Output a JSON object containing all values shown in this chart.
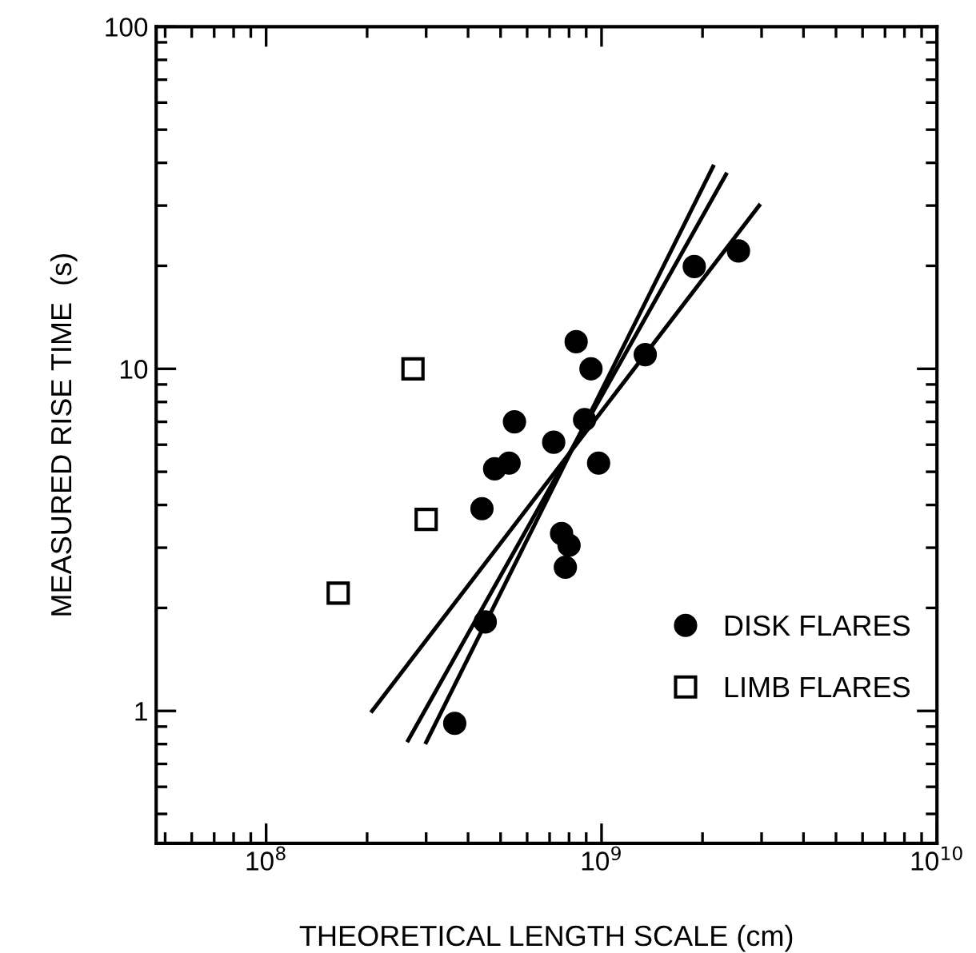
{
  "chart_data": {
    "type": "scatter",
    "xlabel": "THEORETICAL LENGTH SCALE (cm)",
    "ylabel": "MEASURED RISE TIME  (s)",
    "log": "xy",
    "grid": false,
    "legend": "bottom right",
    "xlim": [
      47000000.0,
      10000000000.0
    ],
    "ylim": [
      0.41,
      100
    ],
    "xticks": [
      {
        "value": 100000000.0,
        "label": "10$^{8}$"
      },
      {
        "value": 1000000000.0,
        "label": "10$^{9}$"
      },
      {
        "value": 10000000000.0,
        "label": "10$^{10}$"
      }
    ],
    "yticks": [
      1,
      10,
      100
    ],
    "series": [
      {
        "name": "DISK FLARES",
        "marker": "circle",
        "color": "#000000",
        "x": [
          365000000.0,
          450000000.0,
          840000000.0,
          930000000.0,
          2560000000.0,
          1890000000.0,
          1350000000.0,
          550000000.0,
          890000000.0,
          720000000.0,
          980000000.0,
          480000000.0,
          530000000.0,
          440000000.0,
          760000000.0,
          800000000.0,
          780000000.0
        ],
        "values": [
          0.92,
          1.82,
          12,
          10,
          22.1,
          19.9,
          11,
          7.0,
          7.1,
          6.1,
          5.3,
          5.1,
          5.3,
          3.9,
          3.3,
          3.05,
          2.63
        ]
      },
      {
        "name": "LIMB FLARES",
        "marker": "square",
        "color": "#000000",
        "x": [
          274000000.0,
          300000000.0,
          164000000.0
        ],
        "values": [
          10,
          3.63,
          2.21
        ]
      },
      {
        "type": "line",
        "color": "#000000",
        "x": [
          207000000.0,
          2950000000.0
        ],
        "values": [
          1.0,
          30
        ]
      },
      {
        "type": "line",
        "color": "#000000",
        "x": [
          265000000.0,
          2350000000.0
        ],
        "values": [
          0.82,
          37
        ]
      },
      {
        "type": "line",
        "color": "#000000",
        "x": [
          300000000.0,
          2150000000.0
        ],
        "values": [
          0.81,
          39
        ]
      }
    ]
  }
}
